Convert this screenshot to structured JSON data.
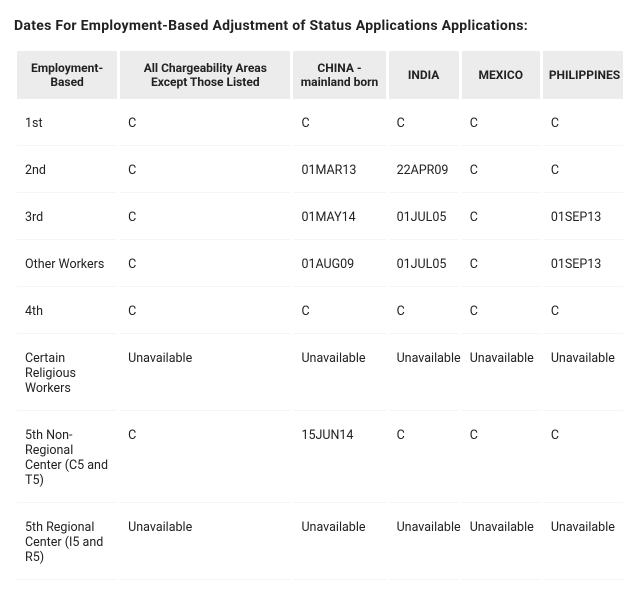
{
  "title": "Dates For Employment-Based Adjustment of Status Applications Applications:",
  "table": {
    "type": "table",
    "background_color": "#ffffff",
    "header_bg": "#ececec",
    "header_fontsize": 12,
    "cell_fontsize": 12.5,
    "border_spacing": 3,
    "columns": [
      {
        "label": "Employment-\nBased",
        "width": 100,
        "align": "center"
      },
      {
        "label": "All Chargeability Areas Except Those Listed",
        "width": 170,
        "align": "center"
      },
      {
        "label": "CHINA - mainland born",
        "width": 92,
        "align": "center"
      },
      {
        "label": "INDIA",
        "width": 70,
        "align": "center"
      },
      {
        "label": "MEXICO",
        "width": 78,
        "align": "center"
      },
      {
        "label": "PHILIPPINES",
        "width": 80,
        "align": "center"
      }
    ],
    "rows": [
      [
        "1st",
        "C",
        "C",
        "C",
        "C",
        "C"
      ],
      [
        "2nd",
        "C",
        "01MAR13",
        "22APR09",
        "C",
        "C"
      ],
      [
        "3rd",
        "C",
        "01MAY14",
        "01JUL05",
        "C",
        "01SEP13"
      ],
      [
        "Other Workers",
        "C",
        "01AUG09",
        "01JUL05",
        "C",
        "01SEP13"
      ],
      [
        "4th",
        "C",
        "C",
        "C",
        "C",
        "C"
      ],
      [
        "Certain Religious Workers",
        "Unavailable",
        "Unavailable",
        "Unavailable",
        "Unavailable",
        "Unavailable"
      ],
      [
        "5th\nNon-Regional Center\n(C5 and T5)",
        "C",
        "15JUN14",
        "C",
        "C",
        "C"
      ],
      [
        "5th\nRegional Center\n(I5 and R5)",
        "Unavailable",
        "Unavailable",
        "Unavailable",
        "Unavailable",
        "Unavailable"
      ]
    ]
  }
}
